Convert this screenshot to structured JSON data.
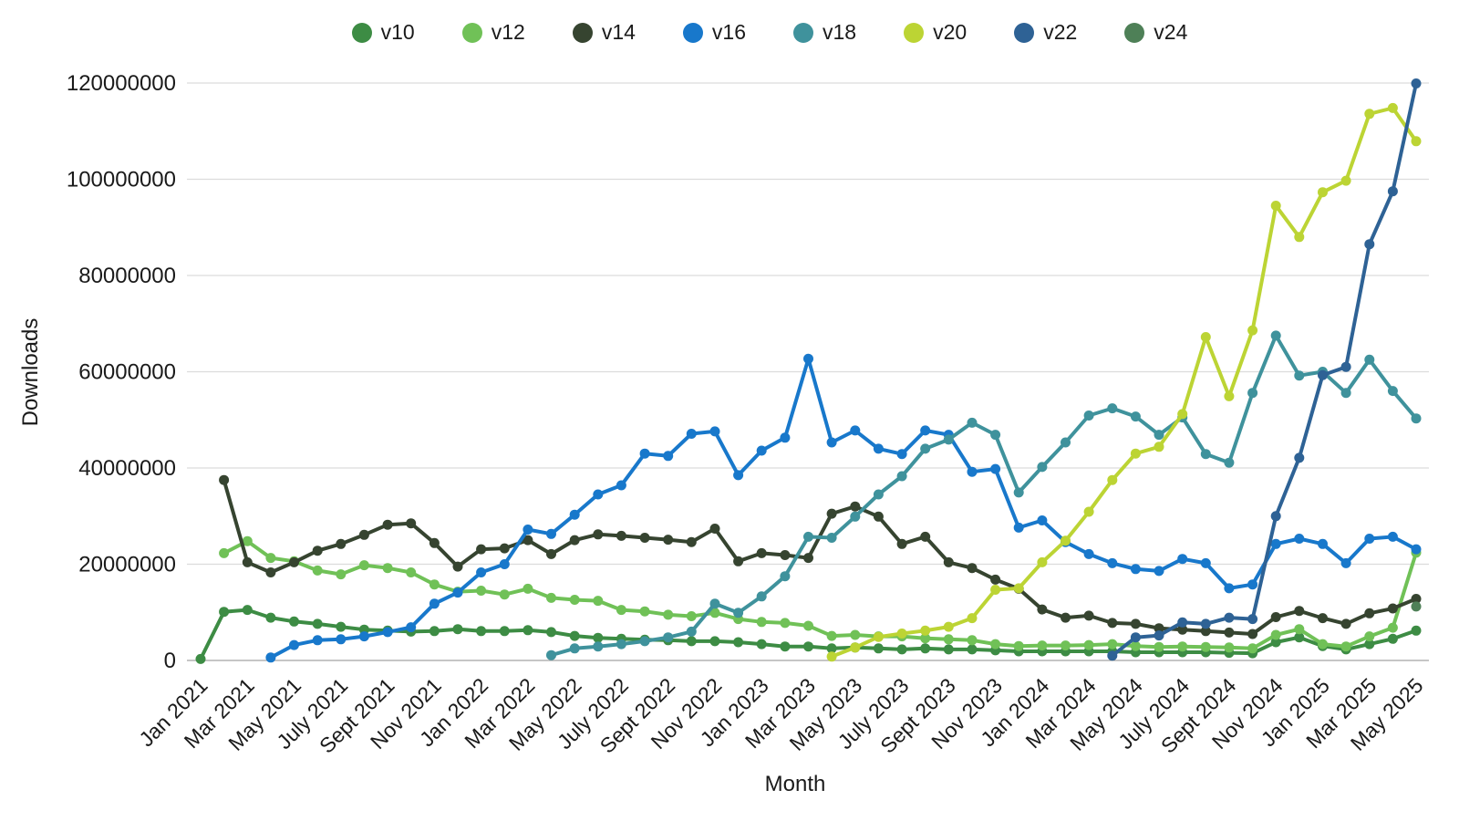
{
  "axes": {
    "y_title": "Downloads",
    "x_title": "Month",
    "y_tick_labels": [
      "0",
      "20000000",
      "40000000",
      "60000000",
      "80000000",
      "100000000",
      "120000000"
    ],
    "x_tick_labels": [
      "Jan 2021",
      "Mar 2021",
      "May 2021",
      "July 2021",
      "Sept 2021",
      "Nov 2021",
      "Jan 2022",
      "Mar 2022",
      "May 2022",
      "July 2022",
      "Sept 2022",
      "Nov 2022",
      "Jan 2023",
      "Mar 2023",
      "May 2023",
      "July 2023",
      "Sept 2023",
      "Nov 2023",
      "Jan 2024",
      "Mar 2024",
      "May 2024",
      "July 2024",
      "Sept 2024",
      "Nov 2024",
      "Jan 2025",
      "Mar 2025",
      "May 2025"
    ]
  },
  "legend": {
    "items": [
      {
        "label": "v10",
        "color": "#3d8c44"
      },
      {
        "label": "v12",
        "color": "#70c157"
      },
      {
        "label": "v14",
        "color": "#364430"
      },
      {
        "label": "v16",
        "color": "#1878cb"
      },
      {
        "label": "v18",
        "color": "#3f929c"
      },
      {
        "label": "v20",
        "color": "#bcd434"
      },
      {
        "label": "v22",
        "color": "#2e6295"
      },
      {
        "label": "v24",
        "color": "#4e8057"
      }
    ]
  },
  "chart_data": {
    "type": "line",
    "xlabel": "Month",
    "ylabel": "Downloads",
    "ylim": [
      0,
      120000000
    ],
    "y_ticks": [
      0,
      20000000,
      40000000,
      60000000,
      80000000,
      100000000,
      120000000
    ],
    "grid": "horizontal",
    "legend_position": "top",
    "x": [
      "Jan 2021",
      "Feb 2021",
      "Mar 2021",
      "Apr 2021",
      "May 2021",
      "June 2021",
      "July 2021",
      "Aug 2021",
      "Sept 2021",
      "Oct 2021",
      "Nov 2021",
      "Dec 2021",
      "Jan 2022",
      "Feb 2022",
      "Mar 2022",
      "Apr 2022",
      "May 2022",
      "June 2022",
      "July 2022",
      "Aug 2022",
      "Sept 2022",
      "Oct 2022",
      "Nov 2022",
      "Dec 2022",
      "Jan 2023",
      "Feb 2023",
      "Mar 2023",
      "Apr 2023",
      "May 2023",
      "June 2023",
      "July 2023",
      "Aug 2023",
      "Sept 2023",
      "Oct 2023",
      "Nov 2023",
      "Dec 2023",
      "Jan 2024",
      "Feb 2024",
      "Mar 2024",
      "Apr 2024",
      "May 2024",
      "June 2024",
      "July 2024",
      "Aug 2024",
      "Sept 2024",
      "Oct 2024",
      "Nov 2024",
      "Dec 2024",
      "Jan 2025",
      "Feb 2025",
      "Mar 2025",
      "Apr 2025",
      "May 2025"
    ],
    "series": [
      {
        "name": "v10",
        "color": "#3d8c44",
        "values": [
          300000,
          10100000,
          10500000,
          8900000,
          8100000,
          7600000,
          7000000,
          6400000,
          6200000,
          6000000,
          6100000,
          6500000,
          6100000,
          6100000,
          6300000,
          5900000,
          5100000,
          4700000,
          4500000,
          4300000,
          4200000,
          4000000,
          4000000,
          3800000,
          3400000,
          2900000,
          2900000,
          2500000,
          2700000,
          2500000,
          2300000,
          2500000,
          2300000,
          2300000,
          2100000,
          1900000,
          1900000,
          1900000,
          1900000,
          1900000,
          1700000,
          1700000,
          1700000,
          1700000,
          1600000,
          1500000,
          3800000,
          4800000,
          3000000,
          2300000,
          3400000,
          4500000,
          6200000
        ]
      },
      {
        "name": "v12",
        "color": "#70c157",
        "values": [
          null,
          22300000,
          24800000,
          21300000,
          20600000,
          18700000,
          17900000,
          19800000,
          19200000,
          18300000,
          15800000,
          14300000,
          14500000,
          13700000,
          14900000,
          13000000,
          12600000,
          12400000,
          10500000,
          10200000,
          9500000,
          9200000,
          9900000,
          8600000,
          8000000,
          7800000,
          7200000,
          5100000,
          5300000,
          5000000,
          5000000,
          4600000,
          4400000,
          4200000,
          3400000,
          3000000,
          3100000,
          3100000,
          3200000,
          3400000,
          3000000,
          2800000,
          2900000,
          2800000,
          2700000,
          2500000,
          5300000,
          6500000,
          3400000,
          2900000,
          5000000,
          6800000,
          22400000
        ]
      },
      {
        "name": "v14",
        "color": "#364430",
        "values": [
          null,
          37500000,
          20400000,
          18300000,
          20400000,
          22800000,
          24200000,
          26100000,
          28200000,
          28500000,
          24400000,
          19500000,
          23100000,
          23300000,
          25000000,
          22100000,
          25000000,
          26200000,
          25900000,
          25500000,
          25100000,
          24600000,
          27400000,
          20600000,
          22300000,
          21900000,
          21300000,
          30500000,
          32000000,
          29900000,
          24200000,
          25700000,
          20400000,
          19200000,
          16800000,
          14900000,
          10600000,
          8900000,
          9300000,
          7800000,
          7600000,
          6700000,
          6400000,
          6100000,
          5800000,
          5500000,
          9000000,
          10300000,
          8800000,
          7600000,
          9800000,
          10800000,
          12800000
        ]
      },
      {
        "name": "v16",
        "color": "#1878cb",
        "values": [
          null,
          null,
          null,
          600000,
          3200000,
          4200000,
          4400000,
          5000000,
          5900000,
          6900000,
          11800000,
          14100000,
          18300000,
          20000000,
          27200000,
          26300000,
          30300000,
          34500000,
          36400000,
          43000000,
          42500000,
          47100000,
          47600000,
          38500000,
          43600000,
          46300000,
          62700000,
          45300000,
          47800000,
          44000000,
          42900000,
          47800000,
          46900000,
          39200000,
          39800000,
          27600000,
          29100000,
          24600000,
          22100000,
          20200000,
          19000000,
          18600000,
          21100000,
          20200000,
          15000000,
          15800000,
          24200000,
          25300000,
          24200000,
          20200000,
          25300000,
          25700000,
          23100000
        ]
      },
      {
        "name": "v18",
        "color": "#3f929c",
        "values": [
          null,
          null,
          null,
          null,
          null,
          null,
          null,
          null,
          null,
          null,
          null,
          null,
          null,
          null,
          null,
          1100000,
          2500000,
          2900000,
          3400000,
          4000000,
          4800000,
          6000000,
          11800000,
          9900000,
          13300000,
          17500000,
          25700000,
          25500000,
          29900000,
          34500000,
          38300000,
          44000000,
          45900000,
          49400000,
          46900000,
          34900000,
          40200000,
          45300000,
          50900000,
          52400000,
          50700000,
          46900000,
          50500000,
          42900000,
          41100000,
          55600000,
          67500000,
          59200000,
          60000000,
          55600000,
          62500000,
          56000000,
          50300000
        ]
      },
      {
        "name": "v20",
        "color": "#bcd434",
        "values": [
          null,
          null,
          null,
          null,
          null,
          null,
          null,
          null,
          null,
          null,
          null,
          null,
          null,
          null,
          null,
          null,
          null,
          null,
          null,
          null,
          null,
          null,
          null,
          null,
          null,
          null,
          null,
          800000,
          2700000,
          4900000,
          5600000,
          6200000,
          7000000,
          8800000,
          14700000,
          15000000,
          20400000,
          24900000,
          30900000,
          37500000,
          43000000,
          44400000,
          51200000,
          67200000,
          54900000,
          68600000,
          94500000,
          88000000,
          97300000,
          99700000,
          113600000,
          114800000,
          107900000
        ]
      },
      {
        "name": "v22",
        "color": "#2e6295",
        "values": [
          null,
          null,
          null,
          null,
          null,
          null,
          null,
          null,
          null,
          null,
          null,
          null,
          null,
          null,
          null,
          null,
          null,
          null,
          null,
          null,
          null,
          null,
          null,
          null,
          null,
          null,
          null,
          null,
          null,
          null,
          null,
          null,
          null,
          null,
          null,
          null,
          null,
          null,
          null,
          1000000,
          4800000,
          5200000,
          7900000,
          7600000,
          8900000,
          8600000,
          30000000,
          42100000,
          59300000,
          61000000,
          86500000,
          97500000,
          119900000
        ]
      },
      {
        "name": "v24",
        "color": "#4e8057",
        "values": [
          null,
          null,
          null,
          null,
          null,
          null,
          null,
          null,
          null,
          null,
          null,
          null,
          null,
          null,
          null,
          null,
          null,
          null,
          null,
          null,
          null,
          null,
          null,
          null,
          null,
          null,
          null,
          null,
          null,
          null,
          null,
          null,
          null,
          null,
          null,
          null,
          null,
          null,
          null,
          null,
          null,
          null,
          null,
          null,
          null,
          null,
          null,
          null,
          null,
          null,
          null,
          null,
          11200000
        ]
      }
    ]
  }
}
